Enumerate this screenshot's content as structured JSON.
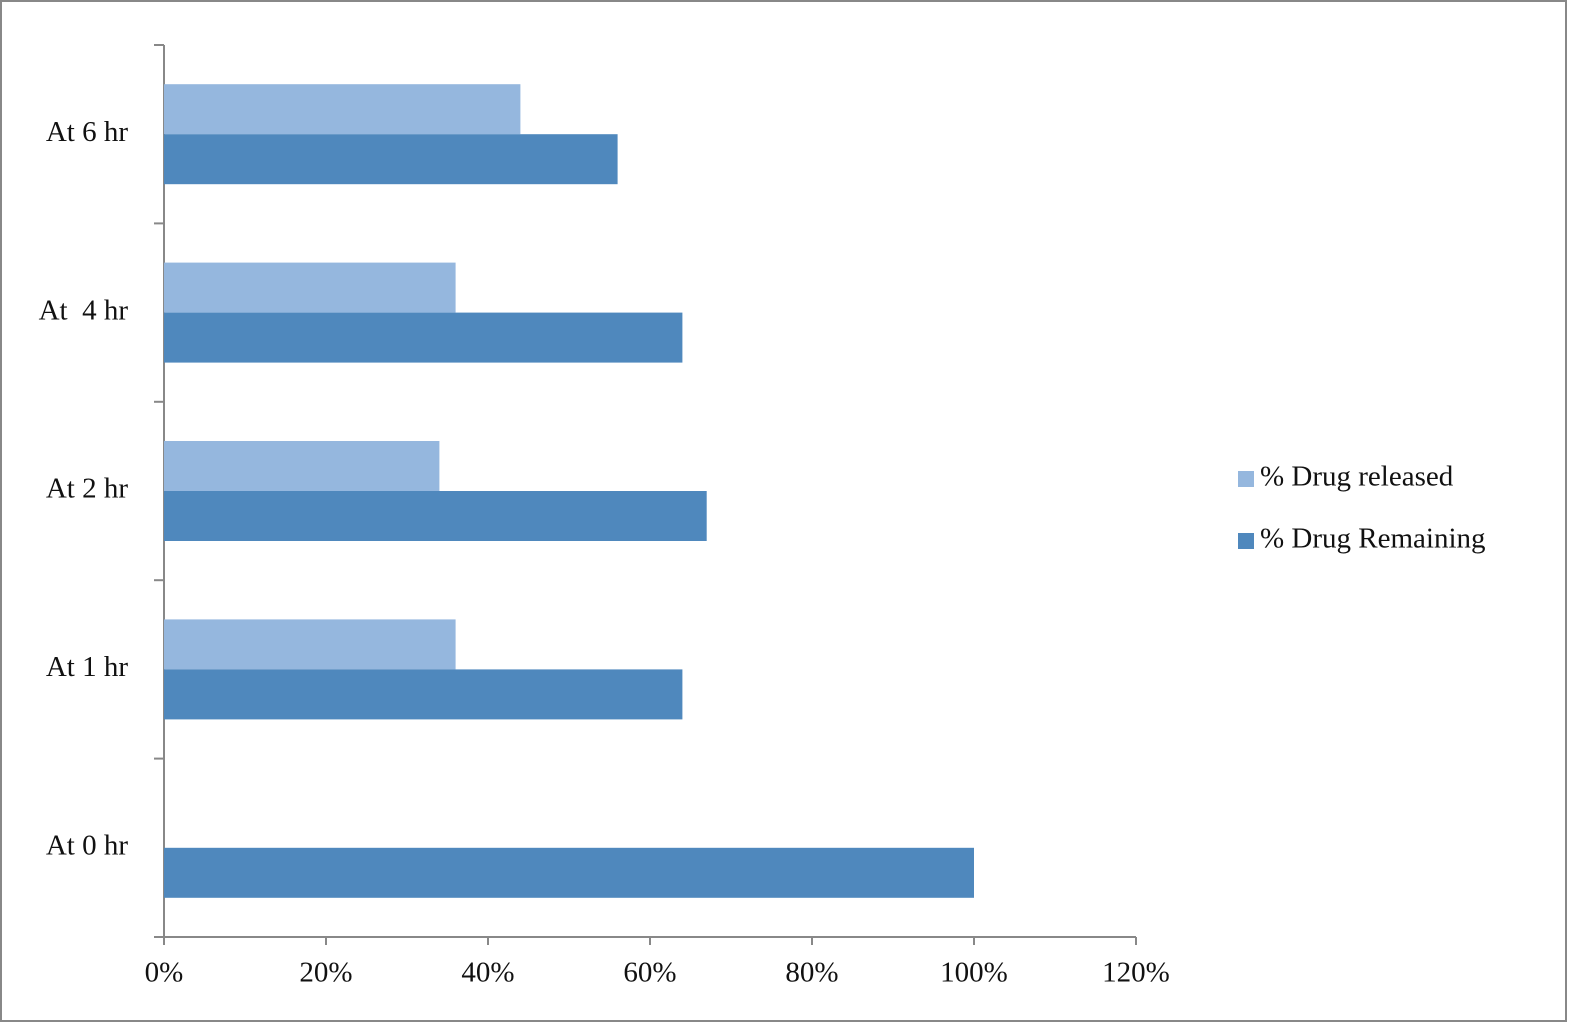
{
  "chart_data": {
    "type": "bar",
    "orientation": "horizontal",
    "categories": [
      "At 0 hr",
      "At 1 hr",
      "At 2 hr",
      "At  4 hr",
      "At 6 hr"
    ],
    "series": [
      {
        "name": "% Drug released",
        "color": "#95b7de",
        "values": [
          0,
          36,
          34,
          36,
          44
        ]
      },
      {
        "name": "% Drug Remaining",
        "color": "#4f88bd",
        "values": [
          100,
          64,
          67,
          64,
          56
        ]
      }
    ],
    "xlim": [
      0,
      120
    ],
    "xticks": [
      {
        "value": 0,
        "label": "0%"
      },
      {
        "value": 20,
        "label": "20%"
      },
      {
        "value": 40,
        "label": "40%"
      },
      {
        "value": 60,
        "label": "60%"
      },
      {
        "value": 80,
        "label": "80%"
      },
      {
        "value": 100,
        "label": "100%"
      },
      {
        "value": 120,
        "label": "120%"
      }
    ],
    "grid": false,
    "legend": "right"
  }
}
